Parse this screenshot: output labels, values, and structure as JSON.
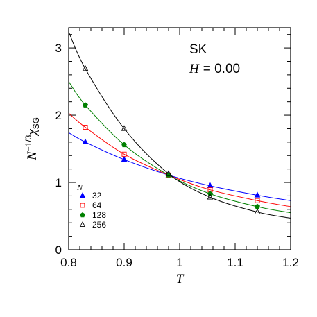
{
  "chart_data": {
    "type": "line",
    "xlabel": "T",
    "ylabel": {
      "main": "N",
      "exponent": "−1/3",
      "symbol": "χ",
      "subscript": "SG"
    },
    "xlim": [
      0.8,
      1.2
    ],
    "ylim": [
      0,
      3.3
    ],
    "x_ticks": [
      "0.8",
      "0.9",
      "1",
      "1.1",
      "1.2"
    ],
    "y_ticks": [
      "0",
      "1",
      "2",
      "3"
    ],
    "annotations": {
      "model": "SK",
      "field_label": "H",
      "field_value": "=  0.00"
    },
    "legend_title": "N",
    "legend_position": "bottom-left",
    "series": [
      {
        "name": "32",
        "color": "#0000ff",
        "marker": "triangle-filled",
        "points": [
          [
            0.83,
            1.6
          ],
          [
            0.9,
            1.34
          ],
          [
            0.98,
            1.11
          ],
          [
            1.055,
            0.95
          ],
          [
            1.14,
            0.81
          ]
        ],
        "curve": [
          [
            0.8,
            1.74
          ],
          [
            0.83,
            1.6
          ],
          [
            0.9,
            1.34
          ],
          [
            0.98,
            1.11
          ],
          [
            1.055,
            0.95
          ],
          [
            1.14,
            0.81
          ],
          [
            1.2,
            0.73
          ]
        ]
      },
      {
        "name": "64",
        "color": "#ff0000",
        "marker": "square-open",
        "points": [
          [
            0.83,
            1.82
          ],
          [
            0.9,
            1.42
          ],
          [
            0.98,
            1.11
          ],
          [
            1.055,
            0.89
          ],
          [
            1.14,
            0.73
          ]
        ],
        "curve": [
          [
            0.8,
            2.03
          ],
          [
            0.83,
            1.82
          ],
          [
            0.9,
            1.42
          ],
          [
            0.98,
            1.11
          ],
          [
            1.055,
            0.89
          ],
          [
            1.14,
            0.73
          ],
          [
            1.2,
            0.64
          ]
        ]
      },
      {
        "name": "128",
        "color": "#008000",
        "marker": "pentagon-filled",
        "points": [
          [
            0.83,
            2.15
          ],
          [
            0.9,
            1.56
          ],
          [
            0.98,
            1.11
          ],
          [
            1.055,
            0.83
          ],
          [
            1.14,
            0.64
          ]
        ],
        "curve": [
          [
            0.8,
            2.5
          ],
          [
            0.83,
            2.15
          ],
          [
            0.9,
            1.56
          ],
          [
            0.98,
            1.11
          ],
          [
            1.055,
            0.83
          ],
          [
            1.14,
            0.64
          ],
          [
            1.2,
            0.55
          ]
        ]
      },
      {
        "name": "256",
        "color": "#000000",
        "marker": "triangle-open",
        "points": [
          [
            0.83,
            2.69
          ],
          [
            0.9,
            1.8
          ],
          [
            0.98,
            1.13
          ],
          [
            1.055,
            0.78
          ],
          [
            1.14,
            0.56
          ]
        ],
        "curve": [
          [
            0.8,
            3.24
          ],
          [
            0.83,
            2.69
          ],
          [
            0.9,
            1.8
          ],
          [
            0.98,
            1.13
          ],
          [
            1.055,
            0.78
          ],
          [
            1.14,
            0.56
          ],
          [
            1.2,
            0.47
          ]
        ]
      }
    ]
  }
}
